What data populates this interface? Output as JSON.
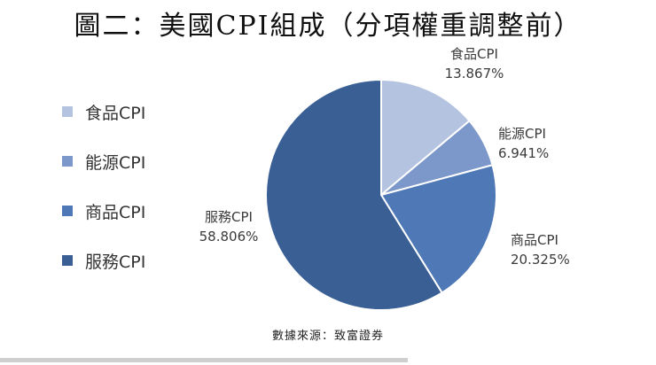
{
  "title": "圖二：美國CPI組成（分項權重調整前）",
  "source": "數據來源：致富證券",
  "colors": {
    "食品CPI": "#b4c3df",
    "能源CPI": "#7c97c9",
    "商品CPI": "#4e78b6",
    "服務CPI": "#395f95"
  },
  "chart_data": {
    "type": "pie",
    "title": "圖二：美國CPI組成（分項權重調整前）",
    "slices": [
      {
        "label": "食品CPI",
        "value": 13.867,
        "display": "13.867%"
      },
      {
        "label": "能源CPI",
        "value": 6.941,
        "display": "6.941%"
      },
      {
        "label": "商品CPI",
        "value": 20.325,
        "display": "20.325%"
      },
      {
        "label": "服務CPI",
        "value": 58.806,
        "display": "58.806%"
      }
    ],
    "legend": [
      "食品CPI",
      "能源CPI",
      "商品CPI",
      "服務CPI"
    ],
    "legend_position": "left",
    "start_angle": "12 o'clock",
    "direction": "clockwise"
  }
}
